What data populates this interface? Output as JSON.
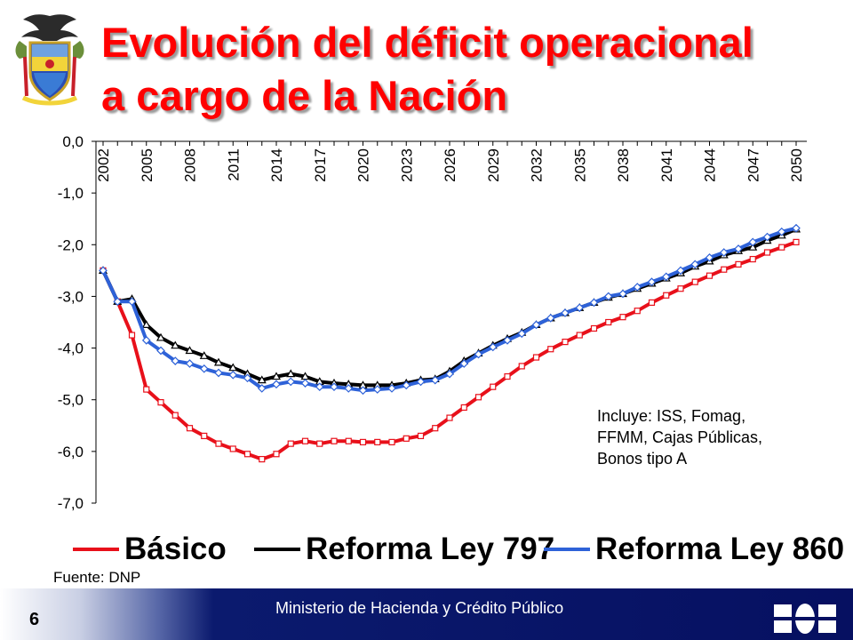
{
  "title": {
    "line1": "Evolución del déficit operacional",
    "line2": "a cargo de la Nación"
  },
  "note": {
    "line1": "Incluye: ISS, Fomag,",
    "line2": "FFMM, Cajas Públicas,",
    "line3": "Bonos tipo A"
  },
  "source": "Fuente: DNP",
  "footer": {
    "page_number": "6",
    "ministry": "Ministerio de Hacienda y Crédito Público"
  },
  "chart_data": {
    "type": "line",
    "title": "",
    "xlabel": "",
    "ylabel": "",
    "ylim": [
      -7.0,
      0.0
    ],
    "y_ticks": [
      "0,0",
      "-1,0",
      "-2,0",
      "-3,0",
      "-4,0",
      "-5,0",
      "-6,0",
      "-7,0"
    ],
    "y_tick_values": [
      0,
      -1,
      -2,
      -3,
      -4,
      -5,
      -6,
      -7
    ],
    "x_tick_labels": [
      "2002",
      "2005",
      "2008",
      "2011",
      "2014",
      "2017",
      "2020",
      "2023",
      "2026",
      "2029",
      "2032",
      "2035",
      "2038",
      "2041",
      "2044",
      "2047",
      "2050"
    ],
    "x": [
      2002,
      2003,
      2004,
      2005,
      2006,
      2007,
      2008,
      2009,
      2010,
      2011,
      2012,
      2013,
      2014,
      2015,
      2016,
      2017,
      2018,
      2019,
      2020,
      2021,
      2022,
      2023,
      2024,
      2025,
      2026,
      2027,
      2028,
      2029,
      2030,
      2031,
      2032,
      2033,
      2034,
      2035,
      2036,
      2037,
      2038,
      2039,
      2040,
      2041,
      2042,
      2043,
      2044,
      2045,
      2046,
      2047,
      2048,
      2049,
      2050
    ],
    "legend_position": "bottom",
    "grid": false,
    "series": [
      {
        "name": "Básico",
        "color": "#e8101a",
        "marker": "square",
        "values": [
          -2.5,
          -3.1,
          -3.75,
          -4.8,
          -5.05,
          -5.3,
          -5.55,
          -5.7,
          -5.85,
          -5.95,
          -6.05,
          -6.15,
          -6.05,
          -5.85,
          -5.8,
          -5.85,
          -5.8,
          -5.8,
          -5.82,
          -5.82,
          -5.82,
          -5.75,
          -5.7,
          -5.55,
          -5.35,
          -5.15,
          -4.95,
          -4.75,
          -4.55,
          -4.35,
          -4.18,
          -4.02,
          -3.88,
          -3.75,
          -3.62,
          -3.5,
          -3.4,
          -3.28,
          -3.12,
          -2.98,
          -2.85,
          -2.72,
          -2.6,
          -2.48,
          -2.38,
          -2.28,
          -2.15,
          -2.05,
          -1.95
        ]
      },
      {
        "name": "Reforma Ley 797",
        "color": "#000000",
        "marker": "triangle",
        "values": [
          -2.5,
          -3.1,
          -3.05,
          -3.55,
          -3.8,
          -3.95,
          -4.05,
          -4.15,
          -4.28,
          -4.38,
          -4.5,
          -4.62,
          -4.55,
          -4.5,
          -4.55,
          -4.65,
          -4.68,
          -4.7,
          -4.72,
          -4.72,
          -4.72,
          -4.68,
          -4.62,
          -4.6,
          -4.45,
          -4.25,
          -4.1,
          -3.95,
          -3.82,
          -3.7,
          -3.55,
          -3.42,
          -3.32,
          -3.22,
          -3.12,
          -3.02,
          -2.95,
          -2.85,
          -2.75,
          -2.65,
          -2.55,
          -2.42,
          -2.32,
          -2.2,
          -2.12,
          -2.05,
          -1.92,
          -1.82,
          -1.7
        ]
      },
      {
        "name": "Reforma Ley 860",
        "color": "#2e62d8",
        "marker": "diamond",
        "values": [
          -2.5,
          -3.1,
          -3.1,
          -3.85,
          -4.05,
          -4.25,
          -4.3,
          -4.4,
          -4.48,
          -4.52,
          -4.58,
          -4.78,
          -4.7,
          -4.65,
          -4.68,
          -4.75,
          -4.75,
          -4.78,
          -4.82,
          -4.8,
          -4.78,
          -4.72,
          -4.65,
          -4.62,
          -4.5,
          -4.3,
          -4.12,
          -3.98,
          -3.85,
          -3.72,
          -3.55,
          -3.42,
          -3.32,
          -3.22,
          -3.12,
          -3.0,
          -2.95,
          -2.82,
          -2.72,
          -2.62,
          -2.5,
          -2.38,
          -2.25,
          -2.15,
          -2.08,
          -1.95,
          -1.85,
          -1.75,
          -1.68
        ]
      }
    ]
  }
}
